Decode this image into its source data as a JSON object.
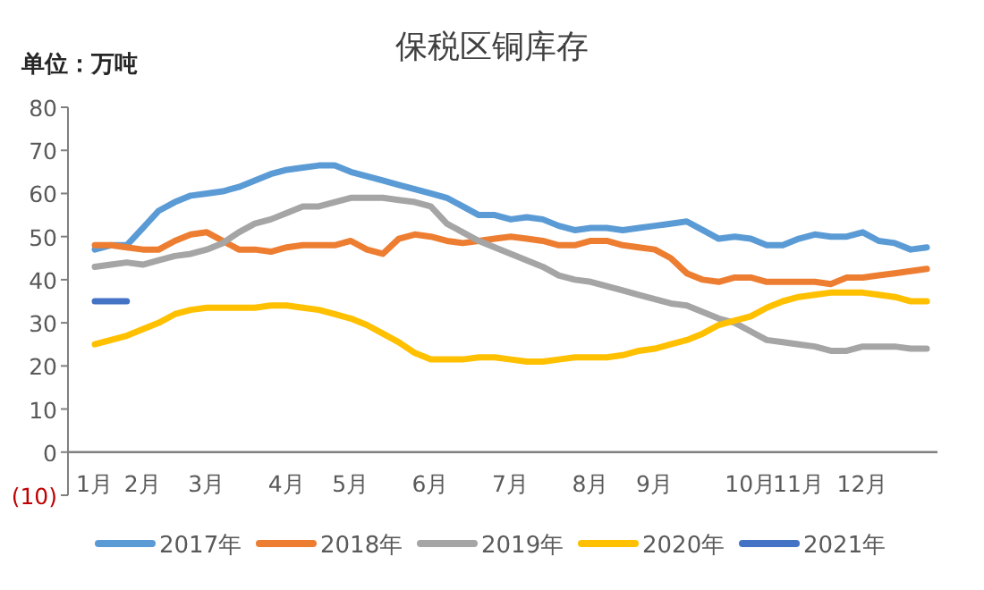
{
  "chart_data": {
    "type": "line",
    "title": "保税区铜库存",
    "ylabel": "单位：万吨",
    "categories": [
      "1月",
      null,
      null,
      "2月",
      null,
      null,
      null,
      "3月",
      null,
      null,
      null,
      null,
      "4月",
      null,
      null,
      null,
      "5月",
      null,
      null,
      null,
      null,
      "6月",
      null,
      null,
      null,
      null,
      "7月",
      null,
      null,
      null,
      null,
      "8月",
      null,
      null,
      null,
      "9月",
      null,
      null,
      null,
      null,
      null,
      "10月",
      null,
      null,
      "11月",
      null,
      null,
      null,
      "12月",
      null,
      null,
      null,
      null
    ],
    "series": [
      {
        "name": "2017年",
        "color": "#5b9bd5",
        "values": [
          47,
          48,
          48,
          52,
          56,
          58,
          59.5,
          60,
          60.5,
          61.5,
          63,
          64.5,
          65.5,
          66,
          66.5,
          66.5,
          65,
          64,
          63,
          62,
          61,
          60,
          59,
          57,
          55,
          55,
          54,
          54.5,
          54,
          52.5,
          51.5,
          52,
          52,
          51.5,
          52,
          52.5,
          53,
          53.5,
          51.5,
          49.5,
          50,
          49.5,
          48,
          48,
          49.5,
          50.5,
          50,
          50,
          51,
          49,
          48.5,
          47,
          47.5
        ]
      },
      {
        "name": "2018年",
        "color": "#ed7d31",
        "values": [
          48,
          48,
          47.5,
          47,
          47,
          49,
          50.5,
          51,
          49,
          47,
          47,
          46.5,
          47.5,
          48,
          48,
          48,
          49,
          47,
          46,
          49.5,
          50.5,
          50,
          49,
          48.5,
          49,
          49.5,
          50,
          49.5,
          49,
          48,
          48,
          49,
          49,
          48,
          47.5,
          47,
          45,
          41.5,
          40,
          39.5,
          40.5,
          40.5,
          39.5,
          39.5,
          39.5,
          39.5,
          39,
          40.5,
          40.5,
          41,
          41.5,
          42,
          42.5
        ]
      },
      {
        "name": "2019年",
        "color": "#a5a5a5",
        "values": [
          43,
          43.5,
          44,
          43.5,
          44.5,
          45.5,
          46,
          47,
          48.5,
          51,
          53,
          54,
          55.5,
          57,
          57,
          58,
          59,
          59,
          59,
          58.5,
          58,
          57,
          53,
          51,
          49,
          47.5,
          46,
          44.5,
          43,
          41,
          40,
          39.5,
          38.5,
          37.5,
          36.5,
          35.5,
          34.5,
          34,
          32.5,
          31,
          30,
          28,
          26,
          25.5,
          25,
          24.5,
          23.5,
          23.5,
          24.5,
          24.5,
          24.5,
          24,
          24
        ]
      },
      {
        "name": "2020年",
        "color": "#ffc000",
        "values": [
          25,
          26,
          27,
          28.5,
          30,
          32,
          33,
          33.5,
          33.5,
          33.5,
          33.5,
          34,
          34,
          33.5,
          33,
          32,
          31,
          29.5,
          27.5,
          25.5,
          23,
          21.5,
          21.5,
          21.5,
          22,
          22,
          21.5,
          21,
          21,
          21.5,
          22,
          22,
          22,
          22.5,
          23.5,
          24,
          25,
          26,
          27.5,
          29.5,
          30.5,
          31.5,
          33.5,
          35,
          36,
          36.5,
          37,
          37,
          37,
          36.5,
          36,
          35,
          35
        ]
      },
      {
        "name": "2021年",
        "color": "#4472c4",
        "values": [
          35,
          35,
          35,
          null,
          null,
          null,
          null,
          null,
          null,
          null,
          null,
          null,
          null,
          null,
          null,
          null,
          null,
          null,
          null,
          null,
          null,
          null,
          null,
          null,
          null,
          null,
          null,
          null,
          null,
          null,
          null,
          null,
          null,
          null,
          null,
          null,
          null,
          null,
          null,
          null,
          null,
          null,
          null,
          null,
          null,
          null,
          null,
          null,
          null,
          null,
          null,
          null,
          null
        ]
      }
    ],
    "ylim": [
      -10,
      80
    ],
    "yticks": [
      {
        "value": -10,
        "label": "(10)"
      },
      0,
      10,
      20,
      30,
      40,
      50,
      60,
      70,
      80
    ],
    "legend": "bottom",
    "marker": "none",
    "line_style": "solid",
    "grid": false
  }
}
